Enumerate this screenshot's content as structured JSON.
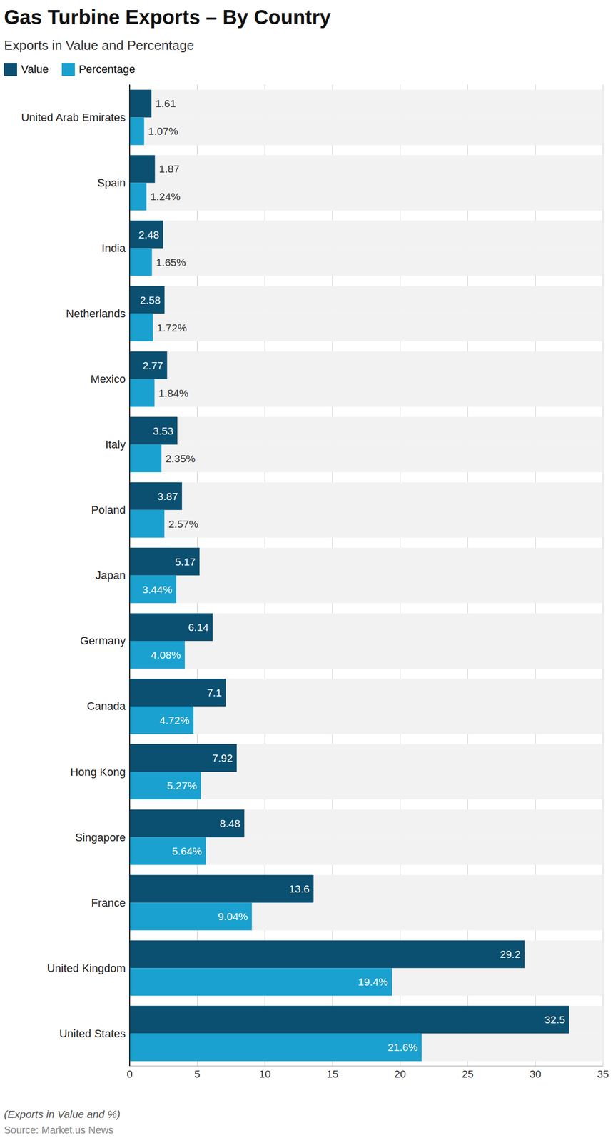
{
  "chart_data": {
    "type": "bar",
    "title": "Gas Turbine Exports – By Country",
    "subtitle": "Exports in Value and Percentage",
    "orientation": "horizontal",
    "legend": "top-left",
    "grid": true,
    "data_labels": true,
    "categories": [
      "United Arab Emirates",
      "Spain",
      "India",
      "Netherlands",
      "Mexico",
      "Italy",
      "Poland",
      "Japan",
      "Germany",
      "Canada",
      "Hong Kong",
      "Singapore",
      "France",
      "United Kingdom",
      "United States"
    ],
    "series": [
      {
        "name": "Value",
        "color": "#0b4f71",
        "values": [
          1.61,
          1.87,
          2.48,
          2.58,
          2.77,
          3.53,
          3.87,
          5.17,
          6.14,
          7.1,
          7.92,
          8.48,
          13.6,
          29.2,
          32.5
        ]
      },
      {
        "name": "Percentage",
        "color": "#1aa1cf",
        "values": [
          1.07,
          1.24,
          1.65,
          1.72,
          1.84,
          2.35,
          2.57,
          3.44,
          4.08,
          4.72,
          5.27,
          5.64,
          9.04,
          19.4,
          21.6
        ],
        "value_labels": [
          "1.07%",
          "1.24%",
          "1.65%",
          "1.72%",
          "1.84%",
          "2.35%",
          "2.57%",
          "3.44%",
          "4.08%",
          "4.72%",
          "5.27%",
          "5.64%",
          "9.04%",
          "19.4%",
          "21.6%"
        ]
      }
    ],
    "xlim": [
      0,
      35
    ],
    "xticks": [
      0,
      5,
      10,
      15,
      20,
      25,
      30,
      35
    ],
    "annotations": [
      "(Exports in Value and %)",
      "Source: Market.us News"
    ]
  }
}
